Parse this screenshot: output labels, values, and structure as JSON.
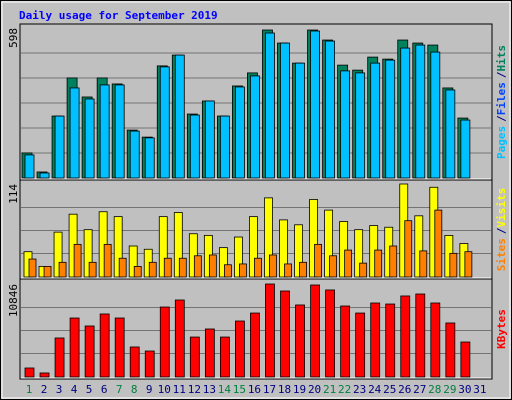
{
  "chart_data": {
    "type": "bar",
    "title": "Daily usage for September 2019",
    "separator": "/",
    "categories": [
      "1",
      "2",
      "3",
      "4",
      "5",
      "6",
      "7",
      "8",
      "9",
      "10",
      "11",
      "12",
      "13",
      "14",
      "15",
      "16",
      "17",
      "18",
      "19",
      "20",
      "21",
      "22",
      "23",
      "24",
      "25",
      "26",
      "27",
      "28",
      "29",
      "30",
      "31"
    ],
    "highlight_indices": [
      0,
      6,
      7,
      13,
      14,
      20,
      21,
      27,
      28
    ],
    "highlight_color": "#008040",
    "label_color": "#000080",
    "panels": [
      {
        "ylim": [
          0,
          598
        ],
        "yticks": [
          598
        ],
        "grid_lines": 5,
        "series": [
          {
            "name": "Hits",
            "color": "#00805c",
            "values": [
              100,
              24,
              247,
              399,
              323,
              399,
              375,
              191,
              163,
              447,
              490,
              255,
              307,
              247,
              367,
              419,
              590,
              538,
              458,
              590,
              550,
              450,
              430,
              482,
              474,
              550,
              538,
              530,
              359,
              239,
              0
            ]
          },
          {
            "name": "Files",
            "color": "#0040ff",
            "values": [
              40,
              8,
              100,
              160,
              130,
              150,
              150,
              75,
              65,
              180,
              200,
              100,
              120,
              100,
              150,
              170,
              240,
              215,
              185,
              240,
              220,
              180,
              170,
              190,
              190,
              220,
              215,
              205,
              145,
              95,
              0
            ]
          },
          {
            "name": "Pages",
            "color": "#00c0ff",
            "values": [
              92,
              20,
              247,
              359,
              315,
              371,
              371,
              187,
              160,
              443,
              490,
              251,
              307,
              247,
              363,
              407,
              578,
              538,
              458,
              586,
              546,
              427,
              419,
              458,
              470,
              518,
              530,
              502,
              351,
              231,
              0
            ]
          }
        ]
      },
      {
        "ylim": [
          0,
          114
        ],
        "yticks": [
          114
        ],
        "grid_lines": 3,
        "series": [
          {
            "name": "Visits",
            "color": "#ffff00",
            "values": [
              31,
              13,
              55,
              77,
              58,
              80,
              74,
              38,
              34,
              74,
              79,
              53,
              51,
              36,
              49,
              74,
              97,
              70,
              64,
              95,
              82,
              68,
              58,
              63,
              61,
              114,
              75,
              110,
              51,
              41,
              0
            ]
          },
          {
            "name": "Sites",
            "color": "#ff8000",
            "values": [
              22,
              13,
              18,
              40,
              18,
              40,
              23,
              13,
              18,
              23,
              23,
              26,
              27,
              15,
              16,
              23,
              27,
              16,
              18,
              40,
              26,
              33,
              17,
              33,
              38,
              69,
              32,
              82,
              29,
              31,
              0
            ]
          }
        ]
      },
      {
        "ylim": [
          0,
          10846
        ],
        "yticks": [
          10846
        ],
        "grid_lines": 3,
        "series": [
          {
            "name": "KBytes",
            "color": "#ff0000",
            "values": [
              1050,
              470,
              4550,
              6880,
              5950,
              7350,
              6880,
              3500,
              3030,
              8160,
              8980,
              4660,
              5600,
              4660,
              6530,
              7460,
              10846,
              10030,
              8400,
              10730,
              10150,
              8280,
              7460,
              8630,
              8510,
              9450,
              9680,
              8630,
              6300,
              4080,
              0
            ]
          }
        ]
      }
    ]
  }
}
